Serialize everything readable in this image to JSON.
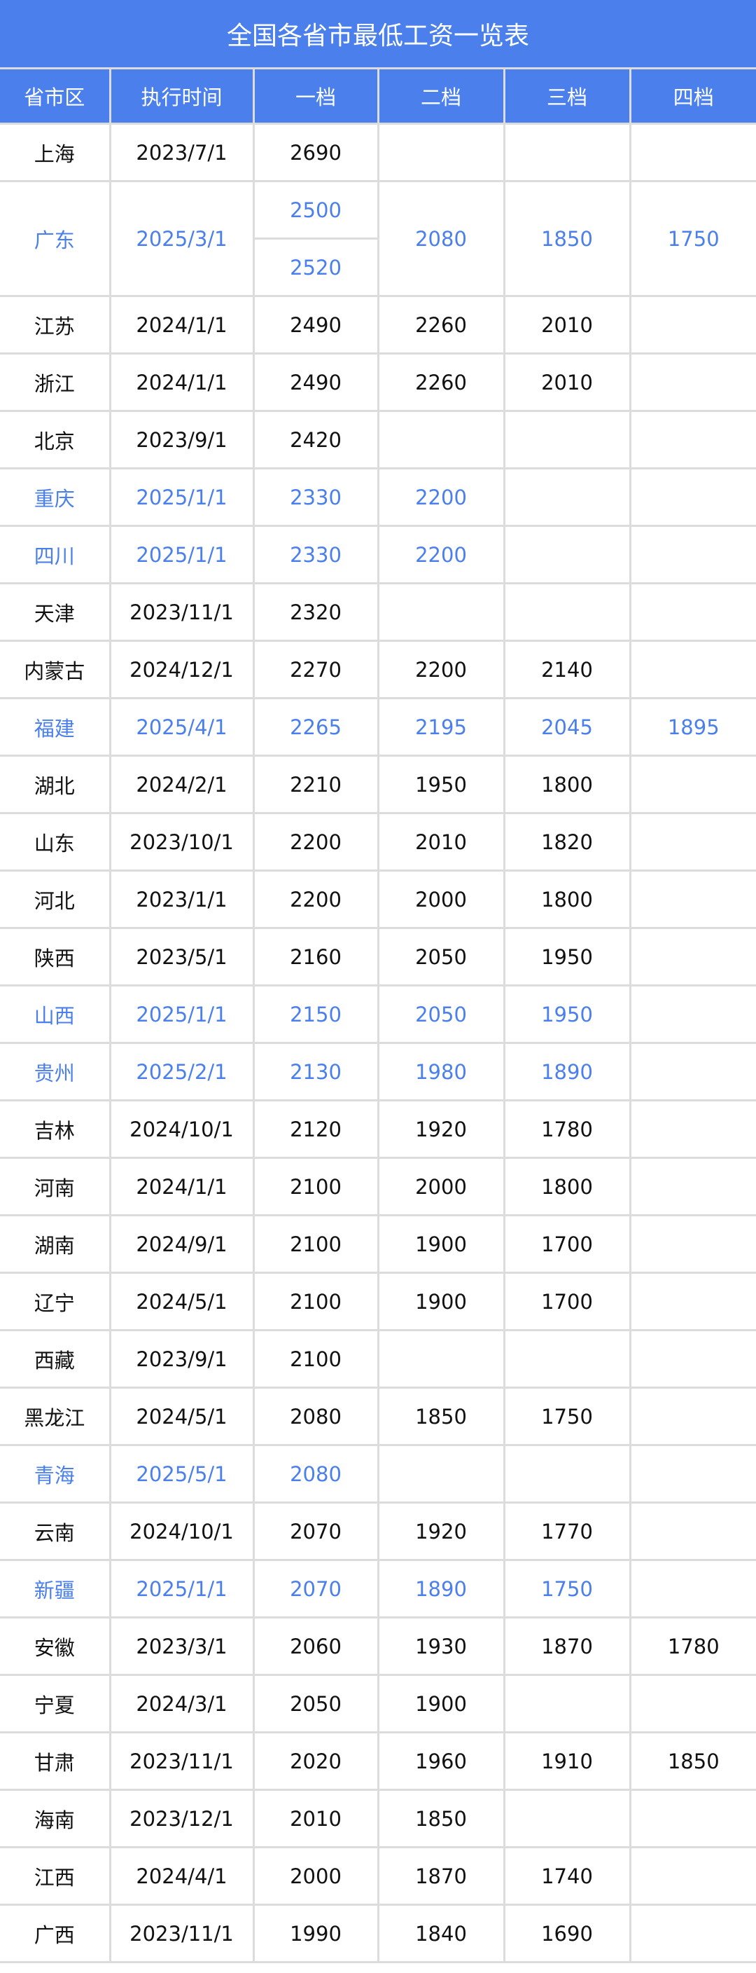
{
  "title": "全国各省市最低工资一览表",
  "columns": [
    "省市区",
    "执行时间",
    "一档",
    "二档",
    "三档",
    "四档"
  ],
  "colors": {
    "header_bg": "#4b80ec",
    "highlight_text": "#4b80ec",
    "border": "#dcdcdc"
  },
  "rows": [
    {
      "region": "上海",
      "date": "2023/7/1",
      "t1": "2690",
      "t2": "",
      "t3": "",
      "t4": "",
      "highlight": false
    },
    {
      "region": "广东",
      "date": "2025/3/1",
      "t1": [
        "2500",
        "2520"
      ],
      "t2": "2080",
      "t3": "1850",
      "t4": "1750",
      "highlight": true
    },
    {
      "region": "江苏",
      "date": "2024/1/1",
      "t1": "2490",
      "t2": "2260",
      "t3": "2010",
      "t4": "",
      "highlight": false
    },
    {
      "region": "浙江",
      "date": "2024/1/1",
      "t1": "2490",
      "t2": "2260",
      "t3": "2010",
      "t4": "",
      "highlight": false
    },
    {
      "region": "北京",
      "date": "2023/9/1",
      "t1": "2420",
      "t2": "",
      "t3": "",
      "t4": "",
      "highlight": false
    },
    {
      "region": "重庆",
      "date": "2025/1/1",
      "t1": "2330",
      "t2": "2200",
      "t3": "",
      "t4": "",
      "highlight": true
    },
    {
      "region": "四川",
      "date": "2025/1/1",
      "t1": "2330",
      "t2": "2200",
      "t3": "",
      "t4": "",
      "highlight": true
    },
    {
      "region": "天津",
      "date": "2023/11/1",
      "t1": "2320",
      "t2": "",
      "t3": "",
      "t4": "",
      "highlight": false
    },
    {
      "region": "内蒙古",
      "date": "2024/12/1",
      "t1": "2270",
      "t2": "2200",
      "t3": "2140",
      "t4": "",
      "highlight": false
    },
    {
      "region": "福建",
      "date": "2025/4/1",
      "t1": "2265",
      "t2": "2195",
      "t3": "2045",
      "t4": "1895",
      "highlight": true
    },
    {
      "region": "湖北",
      "date": "2024/2/1",
      "t1": "2210",
      "t2": "1950",
      "t3": "1800",
      "t4": "",
      "highlight": false
    },
    {
      "region": "山东",
      "date": "2023/10/1",
      "t1": "2200",
      "t2": "2010",
      "t3": "1820",
      "t4": "",
      "highlight": false
    },
    {
      "region": "河北",
      "date": "2023/1/1",
      "t1": "2200",
      "t2": "2000",
      "t3": "1800",
      "t4": "",
      "highlight": false
    },
    {
      "region": "陕西",
      "date": "2023/5/1",
      "t1": "2160",
      "t2": "2050",
      "t3": "1950",
      "t4": "",
      "highlight": false
    },
    {
      "region": "山西",
      "date": "2025/1/1",
      "t1": "2150",
      "t2": "2050",
      "t3": "1950",
      "t4": "",
      "highlight": true
    },
    {
      "region": "贵州",
      "date": "2025/2/1",
      "t1": "2130",
      "t2": "1980",
      "t3": "1890",
      "t4": "",
      "highlight": true
    },
    {
      "region": "吉林",
      "date": "2024/10/1",
      "t1": "2120",
      "t2": "1920",
      "t3": "1780",
      "t4": "",
      "highlight": false
    },
    {
      "region": "河南",
      "date": "2024/1/1",
      "t1": "2100",
      "t2": "2000",
      "t3": "1800",
      "t4": "",
      "highlight": false
    },
    {
      "region": "湖南",
      "date": "2024/9/1",
      "t1": "2100",
      "t2": "1900",
      "t3": "1700",
      "t4": "",
      "highlight": false
    },
    {
      "region": "辽宁",
      "date": "2024/5/1",
      "t1": "2100",
      "t2": "1900",
      "t3": "1700",
      "t4": "",
      "highlight": false
    },
    {
      "region": "西藏",
      "date": "2023/9/1",
      "t1": "2100",
      "t2": "",
      "t3": "",
      "t4": "",
      "highlight": false
    },
    {
      "region": "黑龙江",
      "date": "2024/5/1",
      "t1": "2080",
      "t2": "1850",
      "t3": "1750",
      "t4": "",
      "highlight": false
    },
    {
      "region": "青海",
      "date": "2025/5/1",
      "t1": "2080",
      "t2": "",
      "t3": "",
      "t4": "",
      "highlight": true
    },
    {
      "region": "云南",
      "date": "2024/10/1",
      "t1": "2070",
      "t2": "1920",
      "t3": "1770",
      "t4": "",
      "highlight": false
    },
    {
      "region": "新疆",
      "date": "2025/1/1",
      "t1": "2070",
      "t2": "1890",
      "t3": "1750",
      "t4": "",
      "highlight": true
    },
    {
      "region": "安徽",
      "date": "2023/3/1",
      "t1": "2060",
      "t2": "1930",
      "t3": "1870",
      "t4": "1780",
      "highlight": false
    },
    {
      "region": "宁夏",
      "date": "2024/3/1",
      "t1": "2050",
      "t2": "1900",
      "t3": "",
      "t4": "",
      "highlight": false
    },
    {
      "region": "甘肃",
      "date": "2023/11/1",
      "t1": "2020",
      "t2": "1960",
      "t3": "1910",
      "t4": "1850",
      "highlight": false
    },
    {
      "region": "海南",
      "date": "2023/12/1",
      "t1": "2010",
      "t2": "1850",
      "t3": "",
      "t4": "",
      "highlight": false
    },
    {
      "region": "江西",
      "date": "2024/4/1",
      "t1": "2000",
      "t2": "1870",
      "t3": "1740",
      "t4": "",
      "highlight": false
    },
    {
      "region": "广西",
      "date": "2023/11/1",
      "t1": "1990",
      "t2": "1840",
      "t3": "1690",
      "t4": "",
      "highlight": false
    }
  ]
}
